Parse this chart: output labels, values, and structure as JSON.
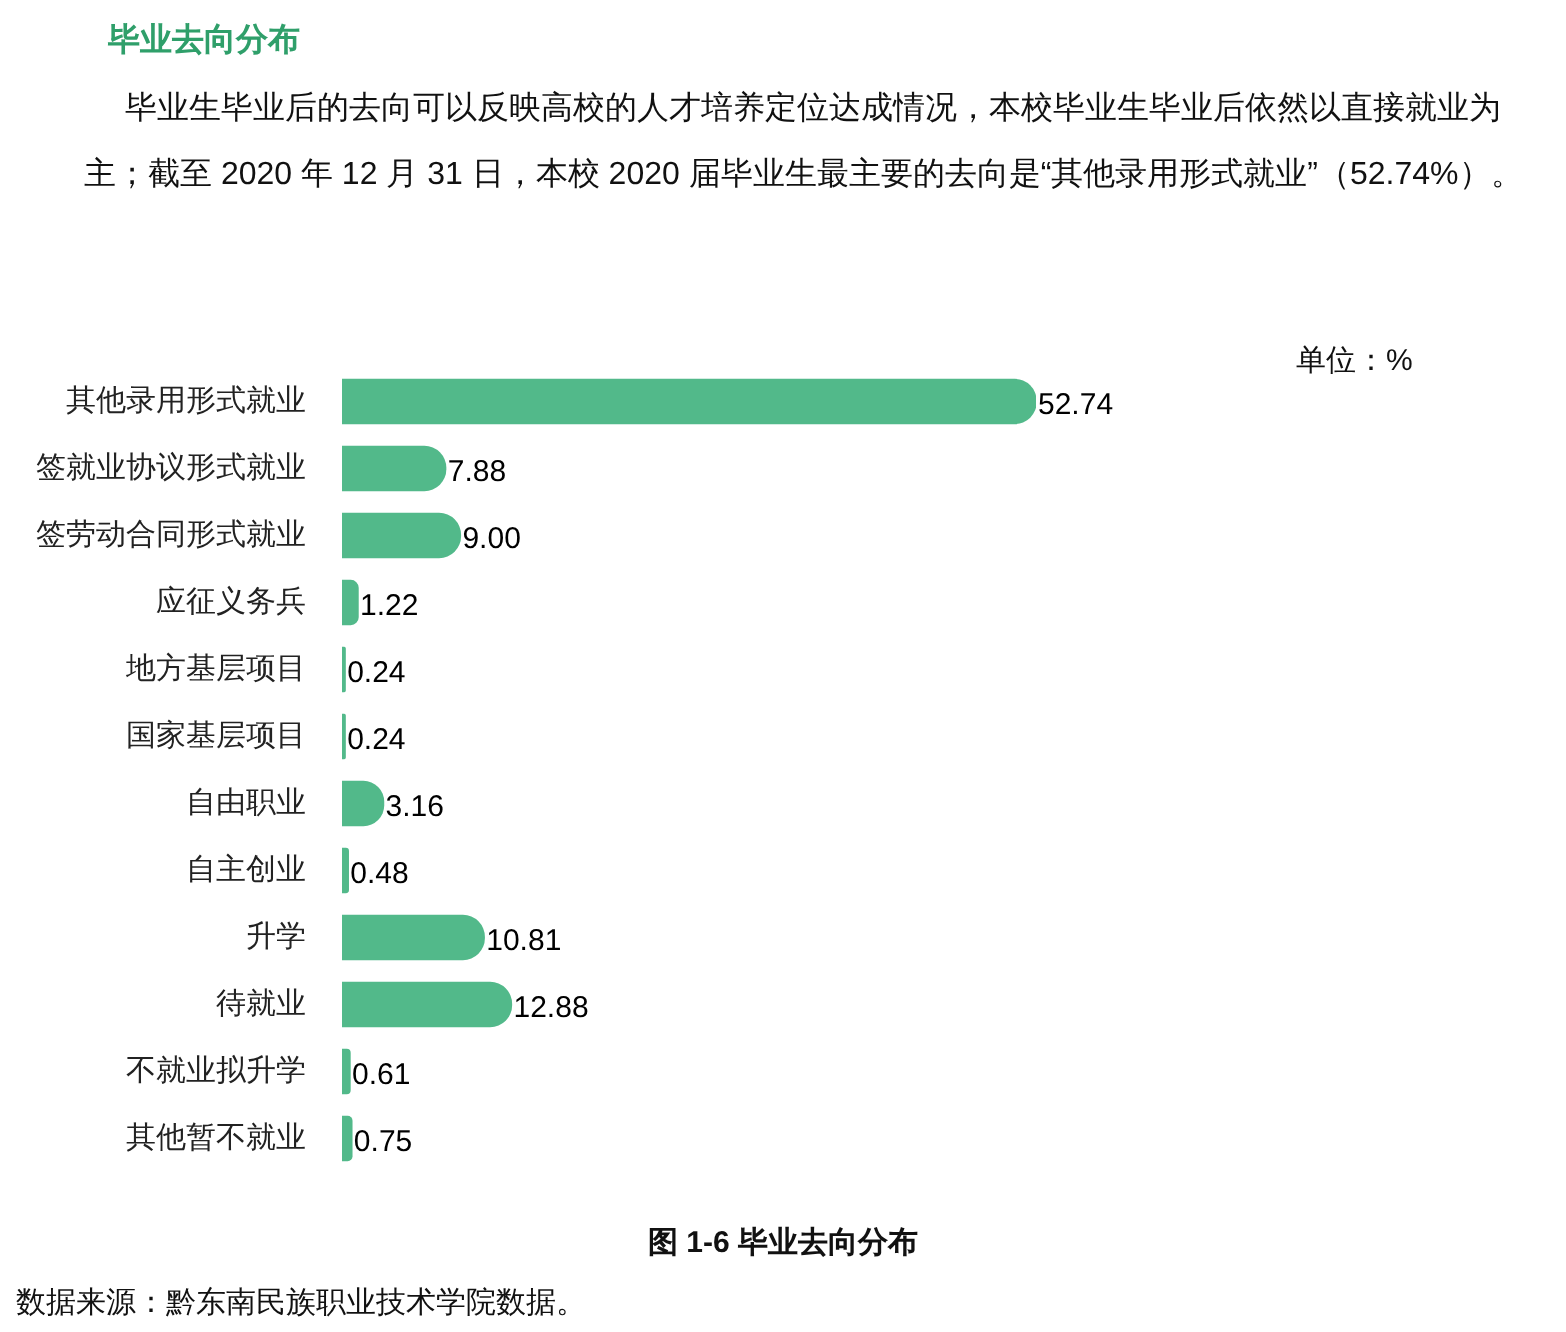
{
  "chart_data": {
    "type": "bar",
    "orientation": "horizontal",
    "title": "毕业去向分布",
    "annotations": [
      "毕业生毕业后的去向可以反映高校的人才培养定位达成情况，本校毕业生毕业后依然以直接就业为主；截至 2020 年 12 月 31 日，本校 2020 届毕业生最主要的去向是“其他录用形式就业”（52.74%）。",
      "单位：%",
      "图 1-6 毕业去向分布",
      "数据来源：黔东南民族职业技术学院数据。"
    ],
    "categories": [
      "其他录用形式就业",
      "签就业协议形式就业",
      "签劳动合同形式就业",
      "应征义务兵",
      "地方基层项目",
      "国家基层项目",
      "自由职业",
      "自主创业",
      "升学",
      "待就业",
      "不就业拟升学",
      "其他暂不就业"
    ],
    "values": [
      52.74,
      7.88,
      9.0,
      1.22,
      0.24,
      0.24,
      3.16,
      0.48,
      10.81,
      12.88,
      0.61,
      0.75
    ],
    "value_labels": [
      "52.74",
      "7.88",
      "9.00",
      "1.22",
      "0.24",
      "0.24",
      "3.16",
      "0.48",
      "10.81",
      "12.88",
      "0.61",
      "0.75"
    ],
    "color": "#52b98a",
    "data_labels": true
  }
}
